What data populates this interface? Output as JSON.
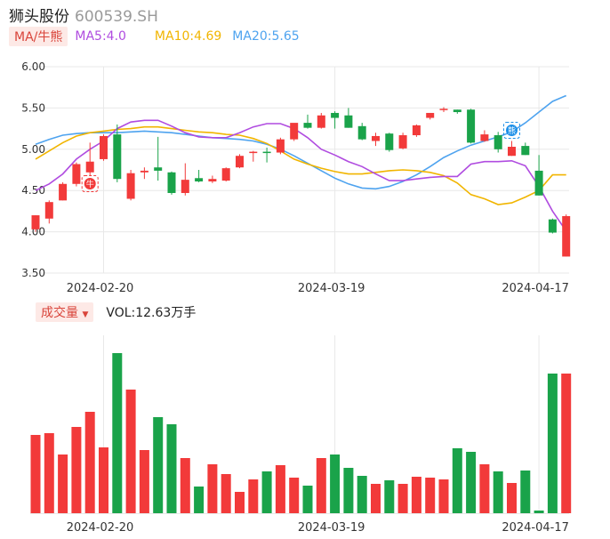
{
  "header": {
    "name": "狮头股份",
    "code": "600539.SH"
  },
  "legend": {
    "ma_tag": "MA/牛熊",
    "ma5": "MA5:4.0",
    "ma10": "MA10:4.69",
    "ma20": "MA20:5.65"
  },
  "volume_legend": {
    "tag": "成交量",
    "value": "VOL:12.63万手"
  },
  "markers": {
    "bull": "牛",
    "bear": "熊"
  },
  "colors": {
    "up": "#f23a3a",
    "down": "#1aa34a",
    "ma5": "#b04ce0",
    "ma10": "#f1b500",
    "ma20": "#4ea3ef",
    "grid": "#e8e8e8",
    "axis": "#333333"
  },
  "chart_data": {
    "type": "candlestick",
    "price_axis": {
      "ylim": [
        3.5,
        6.0
      ],
      "ticks": [
        "6.00",
        "5.50",
        "5.00",
        "4.50",
        "4.00",
        "3.50"
      ]
    },
    "x_labels": [
      {
        "index": 5,
        "label": "2024-02-20"
      },
      {
        "index": 22,
        "label": "2024-03-19"
      },
      {
        "index": 37,
        "label": "2024-04-17"
      }
    ],
    "bull_marker_index": 4,
    "bear_marker_index": 35,
    "candles": [
      {
        "o": 4.03,
        "h": 4.2,
        "l": 4.0,
        "c": 4.2,
        "dir": "up"
      },
      {
        "o": 4.16,
        "h": 4.38,
        "l": 4.1,
        "c": 4.36,
        "dir": "up"
      },
      {
        "o": 4.38,
        "h": 4.6,
        "l": 4.38,
        "c": 4.58,
        "dir": "up"
      },
      {
        "o": 4.58,
        "h": 4.84,
        "l": 4.55,
        "c": 4.82,
        "dir": "up"
      },
      {
        "o": 4.72,
        "h": 5.08,
        "l": 4.68,
        "c": 4.85,
        "dir": "up"
      },
      {
        "o": 4.88,
        "h": 5.18,
        "l": 4.86,
        "c": 5.16,
        "dir": "up"
      },
      {
        "o": 5.18,
        "h": 5.3,
        "l": 4.6,
        "c": 4.64,
        "dir": "down"
      },
      {
        "o": 4.4,
        "h": 4.75,
        "l": 4.38,
        "c": 4.71,
        "dir": "up"
      },
      {
        "o": 4.72,
        "h": 4.78,
        "l": 4.64,
        "c": 4.74,
        "dir": "up"
      },
      {
        "o": 4.78,
        "h": 5.15,
        "l": 4.62,
        "c": 4.74,
        "dir": "down"
      },
      {
        "o": 4.72,
        "h": 4.73,
        "l": 4.45,
        "c": 4.47,
        "dir": "down"
      },
      {
        "o": 4.47,
        "h": 4.83,
        "l": 4.44,
        "c": 4.63,
        "dir": "up"
      },
      {
        "o": 4.65,
        "h": 4.75,
        "l": 4.6,
        "c": 4.61,
        "dir": "down"
      },
      {
        "o": 4.61,
        "h": 4.68,
        "l": 4.59,
        "c": 4.64,
        "dir": "up"
      },
      {
        "o": 4.62,
        "h": 4.78,
        "l": 4.61,
        "c": 4.77,
        "dir": "up"
      },
      {
        "o": 4.78,
        "h": 4.94,
        "l": 4.77,
        "c": 4.92,
        "dir": "up"
      },
      {
        "o": 4.96,
        "h": 4.98,
        "l": 4.85,
        "c": 4.97,
        "dir": "up"
      },
      {
        "o": 4.97,
        "h": 5.02,
        "l": 4.84,
        "c": 4.96,
        "dir": "down"
      },
      {
        "o": 4.96,
        "h": 5.14,
        "l": 4.94,
        "c": 5.12,
        "dir": "up"
      },
      {
        "o": 5.12,
        "h": 5.31,
        "l": 5.1,
        "c": 5.32,
        "dir": "up"
      },
      {
        "o": 5.32,
        "h": 5.42,
        "l": 5.25,
        "c": 5.26,
        "dir": "down"
      },
      {
        "o": 5.26,
        "h": 5.44,
        "l": 5.25,
        "c": 5.41,
        "dir": "up"
      },
      {
        "o": 5.44,
        "h": 5.46,
        "l": 5.25,
        "c": 5.38,
        "dir": "down"
      },
      {
        "o": 5.41,
        "h": 5.5,
        "l": 5.26,
        "c": 5.26,
        "dir": "down"
      },
      {
        "o": 5.28,
        "h": 5.32,
        "l": 5.11,
        "c": 5.12,
        "dir": "down"
      },
      {
        "o": 5.1,
        "h": 5.2,
        "l": 5.04,
        "c": 5.16,
        "dir": "up"
      },
      {
        "o": 5.19,
        "h": 5.2,
        "l": 4.97,
        "c": 4.99,
        "dir": "down"
      },
      {
        "o": 5.01,
        "h": 5.2,
        "l": 5.0,
        "c": 5.17,
        "dir": "up"
      },
      {
        "o": 5.17,
        "h": 5.3,
        "l": 5.15,
        "c": 5.29,
        "dir": "up"
      },
      {
        "o": 5.38,
        "h": 5.44,
        "l": 5.36,
        "c": 5.44,
        "dir": "up"
      },
      {
        "o": 5.48,
        "h": 5.51,
        "l": 5.45,
        "c": 5.49,
        "dir": "up"
      },
      {
        "o": 5.48,
        "h": 5.48,
        "l": 5.43,
        "c": 5.45,
        "dir": "down"
      },
      {
        "o": 5.48,
        "h": 5.49,
        "l": 5.07,
        "c": 5.08,
        "dir": "down"
      },
      {
        "o": 5.1,
        "h": 5.23,
        "l": 5.09,
        "c": 5.18,
        "dir": "up"
      },
      {
        "o": 5.17,
        "h": 5.21,
        "l": 4.96,
        "c": 5.0,
        "dir": "down"
      },
      {
        "o": 4.92,
        "h": 5.1,
        "l": 4.92,
        "c": 5.03,
        "dir": "up"
      },
      {
        "o": 5.04,
        "h": 5.08,
        "l": 4.93,
        "c": 4.93,
        "dir": "down"
      },
      {
        "o": 4.74,
        "h": 4.93,
        "l": 4.44,
        "c": 4.44,
        "dir": "down"
      },
      {
        "o": 4.15,
        "h": 4.16,
        "l": 3.98,
        "c": 3.99,
        "dir": "down"
      },
      {
        "o": 3.7,
        "h": 4.21,
        "l": 3.7,
        "c": 4.19,
        "dir": "up"
      }
    ],
    "ma5": [
      4.5,
      4.58,
      4.7,
      4.88,
      5.0,
      5.1,
      5.25,
      5.33,
      5.35,
      5.35,
      5.28,
      5.2,
      5.15,
      5.14,
      5.14,
      5.2,
      5.27,
      5.31,
      5.31,
      5.25,
      5.14,
      5.0,
      4.93,
      4.85,
      4.79,
      4.7,
      4.62,
      4.62,
      4.64,
      4.66,
      4.67,
      4.67,
      4.82,
      4.85,
      4.85,
      4.86,
      4.8,
      4.55,
      4.25,
      4.01
    ],
    "ma10": [
      4.88,
      4.98,
      5.08,
      5.16,
      5.2,
      5.22,
      5.24,
      5.25,
      5.27,
      5.27,
      5.25,
      5.23,
      5.21,
      5.2,
      5.18,
      5.17,
      5.13,
      5.07,
      4.98,
      4.88,
      4.82,
      4.77,
      4.73,
      4.7,
      4.7,
      4.72,
      4.74,
      4.75,
      4.74,
      4.72,
      4.68,
      4.59,
      4.45,
      4.4,
      4.33,
      4.35,
      4.42,
      4.5,
      4.69,
      4.69
    ],
    "ma20": [
      5.06,
      5.12,
      5.17,
      5.19,
      5.2,
      5.2,
      5.2,
      5.21,
      5.22,
      5.21,
      5.2,
      5.18,
      5.16,
      5.14,
      5.13,
      5.12,
      5.1,
      5.06,
      5.0,
      4.92,
      4.83,
      4.74,
      4.65,
      4.58,
      4.53,
      4.52,
      4.55,
      4.61,
      4.69,
      4.79,
      4.9,
      4.98,
      5.05,
      5.1,
      5.15,
      5.21,
      5.32,
      5.45,
      5.58,
      5.65
    ],
    "volume": [
      88,
      90,
      66,
      97,
      114,
      74,
      180,
      139,
      71,
      108,
      100,
      62,
      30,
      55,
      44,
      24,
      38,
      47,
      54,
      40,
      31,
      62,
      66,
      51,
      42,
      33,
      37,
      33,
      41,
      40,
      38,
      73,
      69,
      55,
      47,
      34,
      48,
      3,
      157,
      157
    ]
  }
}
